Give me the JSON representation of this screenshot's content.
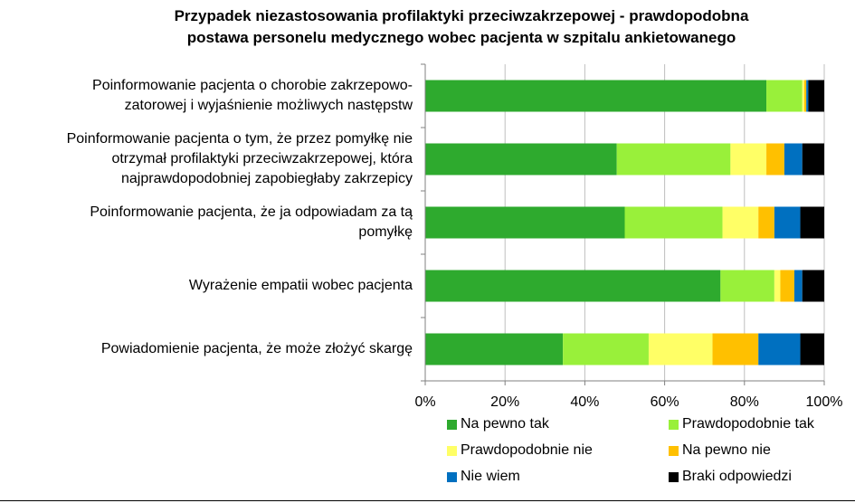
{
  "chart_data": {
    "type": "bar",
    "orientation": "horizontal",
    "stacked": "percent",
    "title": [
      "Przypadek niezastosowania profilaktyki przeciwzakrzepowej - prawdopodobna",
      "postawa personelu medycznego wobec pacjenta w szpitalu ankietowanego"
    ],
    "categories": [
      [
        "Poinformowanie pacjenta o chorobie zakrzepowo-",
        "zatorowej i wyjaśnienie możliwych następstw"
      ],
      [
        "Poinformowanie pacjenta o tym, że przez pomyłkę nie",
        "otrzymał profilaktyki przeciwzakrzepowej, która",
        "najprawdopodobniej zapobiegłaby zakrzepicy"
      ],
      [
        "Poinformowanie pacjenta, że ja odpowiadam za tą",
        "pomyłkę"
      ],
      [
        "Wyrażenie empatii wobec pacjenta"
      ],
      [
        "Powiadomienie pacjenta, że może złożyć skargę"
      ]
    ],
    "series": [
      {
        "name": "Na pewno tak",
        "color": "#2EAA2E",
        "values": [
          85.5,
          48,
          50,
          74,
          34.5
        ]
      },
      {
        "name": "Prawdopodobnie tak",
        "color": "#99F03A",
        "values": [
          9,
          28.5,
          24.5,
          13.5,
          21.5
        ]
      },
      {
        "name": "Prawdopodobnie nie",
        "color": "#FFFF66",
        "values": [
          0.5,
          9,
          9,
          1.5,
          16
        ]
      },
      {
        "name": "Na pewno nie",
        "color": "#FFC000",
        "values": [
          0.5,
          4.5,
          4,
          3.5,
          11.5
        ]
      },
      {
        "name": "Nie wiem",
        "color": "#0070C0",
        "values": [
          0.5,
          4.5,
          6.5,
          2,
          10.5
        ]
      },
      {
        "name": "Braki odpowiedzi",
        "color": "#000000",
        "values": [
          4,
          5.5,
          6,
          5.5,
          6
        ]
      }
    ],
    "xlim": [
      0,
      100
    ],
    "xticks": [
      "0%",
      "20%",
      "40%",
      "60%",
      "80%",
      "100%"
    ],
    "grid": true,
    "legend": "bottom"
  }
}
